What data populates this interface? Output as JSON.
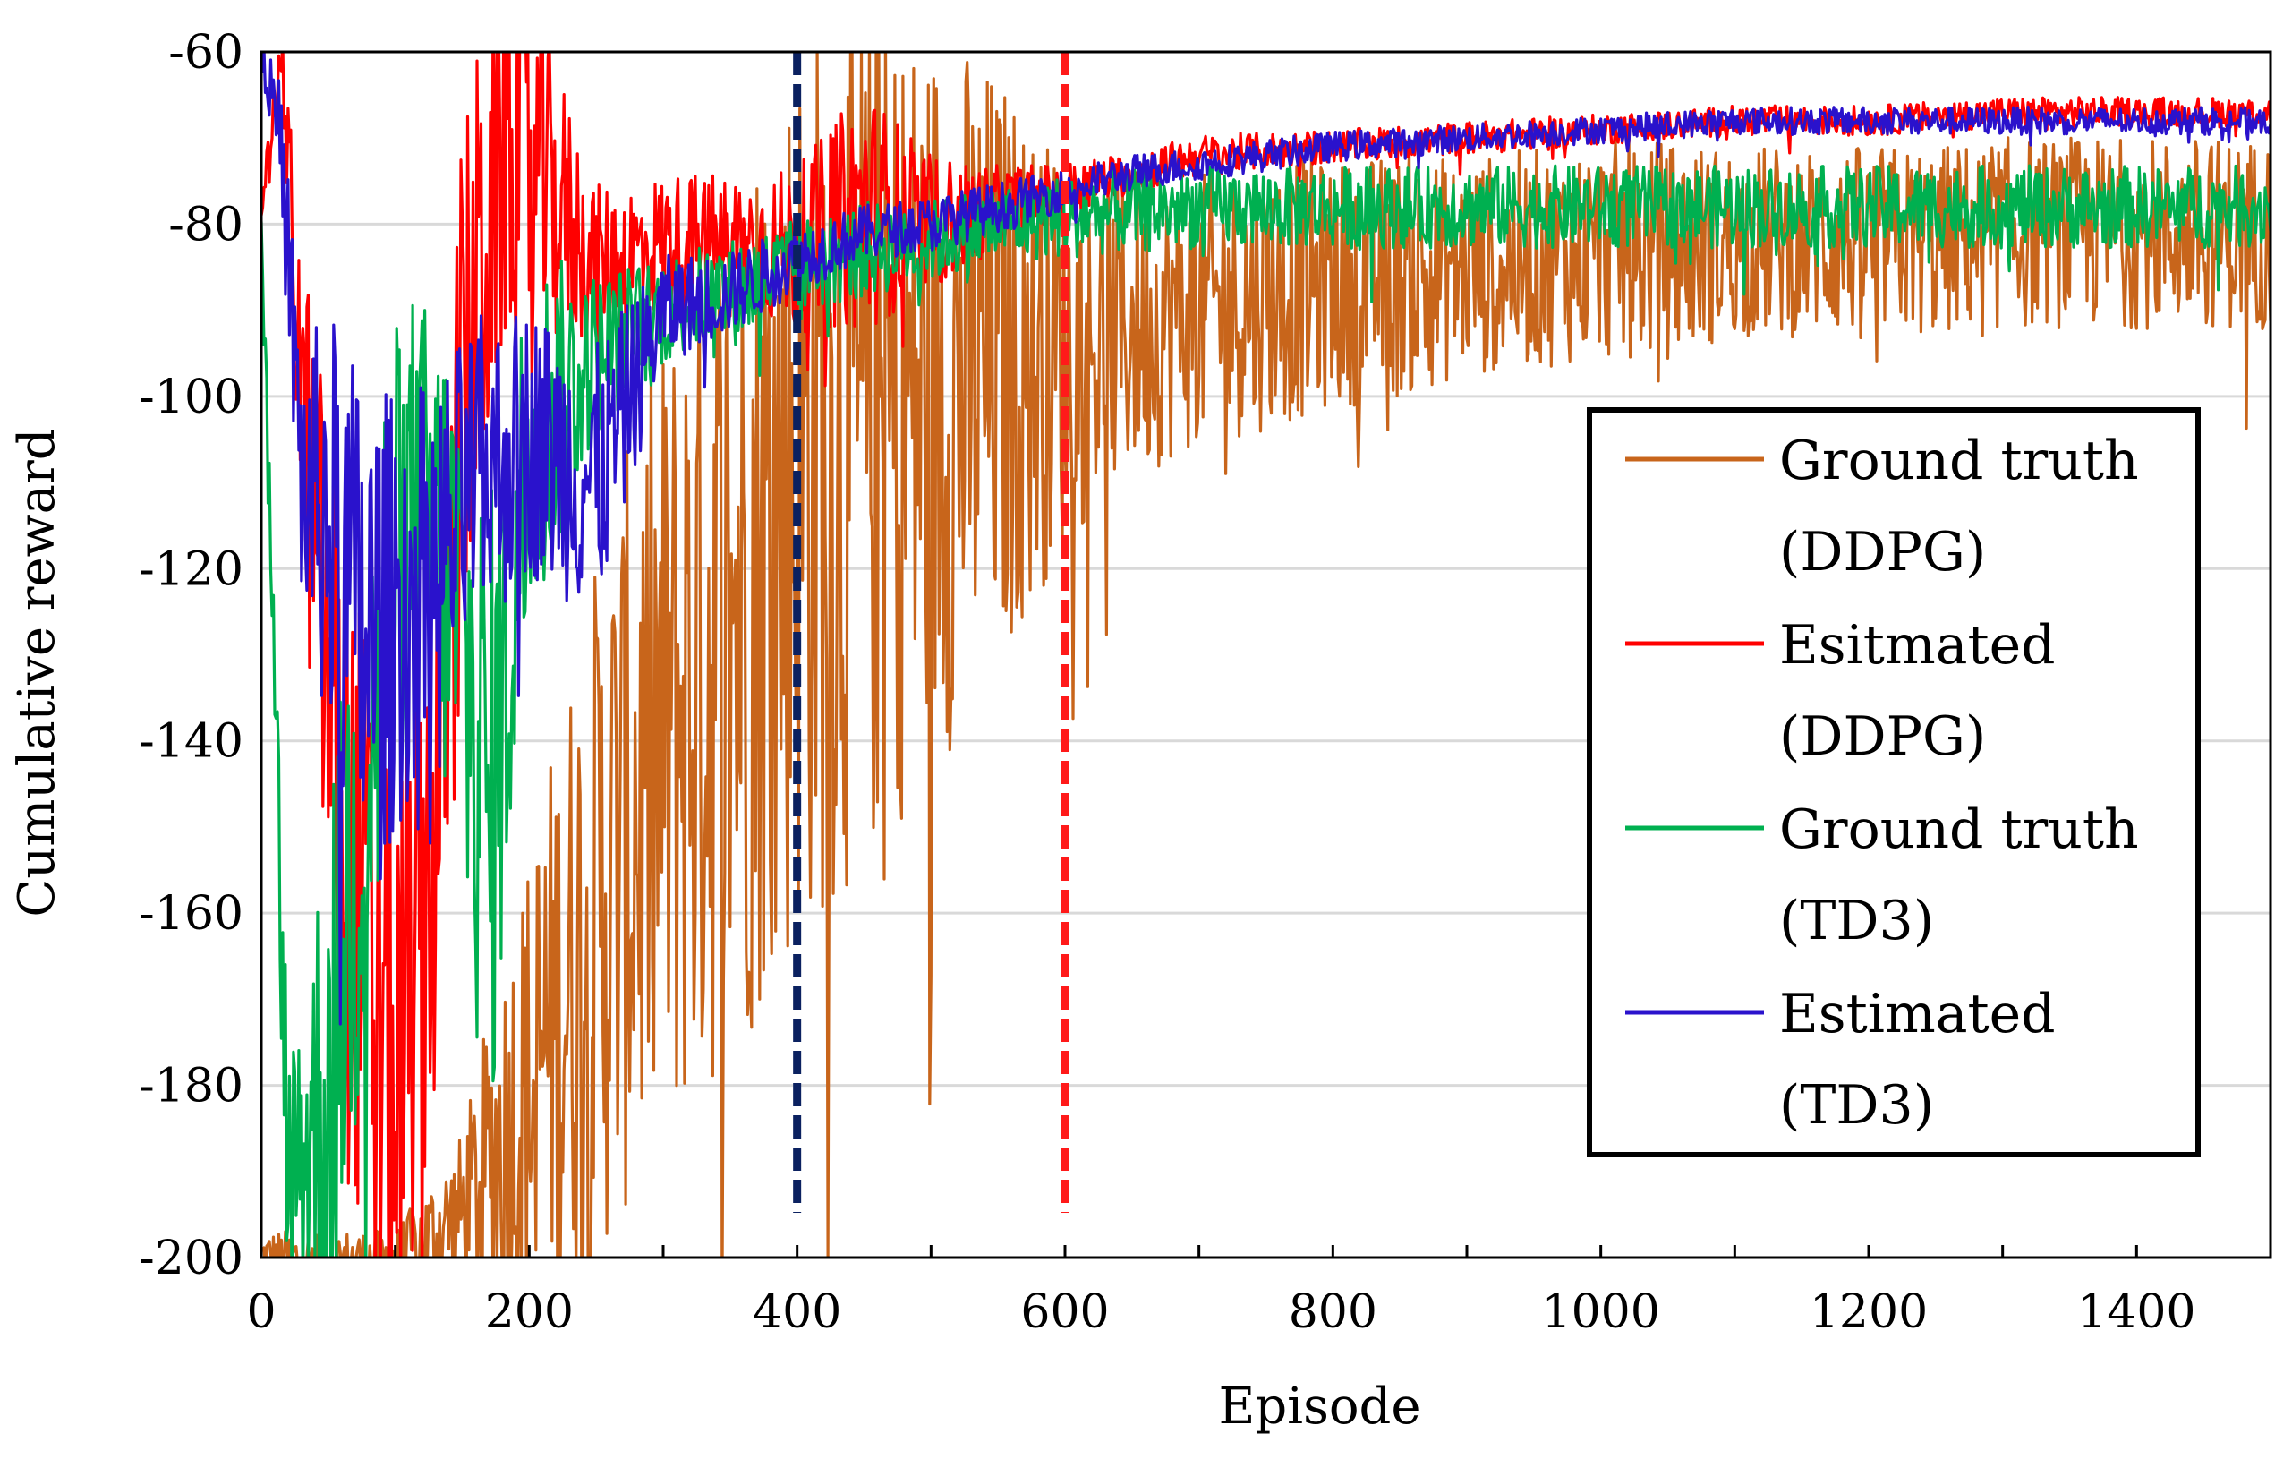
{
  "chart_data": {
    "type": "line",
    "title": "",
    "xlabel": "Episode",
    "ylabel": "Cumulative reward",
    "xlim": [
      0,
      1500
    ],
    "ylim": [
      -200,
      -60
    ],
    "xticks": [
      0,
      200,
      400,
      600,
      800,
      1000,
      1200,
      1400
    ],
    "yticks": [
      -200,
      -180,
      -160,
      -140,
      -120,
      -100,
      -80,
      -60
    ],
    "grid": "horizontal",
    "legend_position": "right",
    "series": [
      {
        "name": "Ground truth (DDPG)",
        "legend_line1": "Ground truth",
        "legend_line2": "(DDPG)",
        "color": "#C8651B",
        "x": [
          0,
          50,
          100,
          150,
          200,
          250,
          300,
          350,
          400,
          450,
          500,
          550,
          600,
          650,
          700,
          750,
          800,
          850,
          900,
          950,
          1000,
          1050,
          1100,
          1150,
          1200,
          1250,
          1300,
          1350,
          1400,
          1450,
          1500
        ],
        "y": [
          -200,
          -200,
          -200,
          -195,
          -180,
          -160,
          -140,
          -125,
          -110,
          -105,
          -100,
          -97,
          -95,
          -92,
          -90,
          -88,
          -87,
          -86,
          -85,
          -84,
          -83,
          -83,
          -82,
          -82,
          -82,
          -82,
          -81,
          -81,
          -81,
          -81,
          -81
        ],
        "noise": [
          2,
          2,
          2,
          6,
          18,
          26,
          30,
          34,
          34,
          32,
          28,
          22,
          14,
          11,
          10,
          10,
          9,
          9,
          8,
          8,
          8,
          8,
          7,
          7,
          7,
          7,
          7,
          7,
          7,
          7,
          7
        ]
      },
      {
        "name": "Esitmated (DDPG)",
        "legend_line1": "Esitmated",
        "legend_line2": "(DDPG)",
        "color": "#FF0000",
        "x": [
          0,
          15,
          30,
          60,
          100,
          130,
          150,
          180,
          210,
          250,
          300,
          350,
          400,
          450,
          500,
          550,
          600,
          650,
          700,
          800,
          900,
          1000,
          1100,
          1200,
          1300,
          1400,
          1500
        ],
        "y": [
          -78,
          -60,
          -100,
          -150,
          -180,
          -150,
          -100,
          -70,
          -75,
          -85,
          -82,
          -82,
          -83,
          -78,
          -80,
          -78,
          -76,
          -74,
          -72,
          -71,
          -70,
          -69,
          -68,
          -68,
          -67,
          -67,
          -67
        ],
        "noise": [
          1,
          2,
          12,
          24,
          22,
          22,
          20,
          16,
          12,
          6,
          5,
          5,
          6,
          9,
          5,
          3,
          2,
          1.5,
          1.5,
          1.2,
          1.2,
          1.1,
          1.1,
          1.1,
          1.1,
          1.1,
          1.1
        ]
      },
      {
        "name": "Ground truth (TD3)",
        "legend_line1": "Ground truth",
        "legend_line2": "(TD3)",
        "color": "#00B050",
        "x": [
          0,
          20,
          50,
          80,
          110,
          140,
          170,
          200,
          250,
          300,
          350,
          400,
          450,
          500,
          550,
          600,
          700,
          800,
          900,
          1000,
          1100,
          1200,
          1300,
          1400,
          1500
        ],
        "y": [
          -80,
          -190,
          -180,
          -140,
          -115,
          -120,
          -150,
          -105,
          -95,
          -90,
          -88,
          -85,
          -83,
          -82,
          -80,
          -79,
          -78,
          -78,
          -78,
          -78,
          -78,
          -78,
          -78,
          -78,
          -78
        ],
        "noise": [
          2,
          10,
          20,
          24,
          18,
          18,
          24,
          14,
          6,
          4,
          4,
          3.5,
          3.5,
          3,
          3,
          3,
          3,
          3,
          3,
          3,
          3,
          3,
          3,
          3,
          3
        ]
      },
      {
        "name": "Estimated (TD3)",
        "legend_line1": "Estimated",
        "legend_line2": "(TD3)",
        "color": "#2A12CC",
        "x": [
          0,
          15,
          30,
          50,
          80,
          100,
          130,
          160,
          200,
          250,
          300,
          350,
          400,
          450,
          500,
          550,
          600,
          650,
          700,
          800,
          900,
          1000,
          1100,
          1200,
          1300,
          1400,
          1500
        ],
        "y": [
          -60,
          -70,
          -110,
          -115,
          -130,
          -125,
          -120,
          -110,
          -105,
          -110,
          -90,
          -88,
          -84,
          -81,
          -80,
          -78,
          -76,
          -74,
          -73,
          -71,
          -70,
          -69,
          -68,
          -68,
          -68,
          -68,
          -68
        ],
        "noise": [
          1,
          4,
          10,
          16,
          20,
          16,
          14,
          12,
          10,
          10,
          4,
          3,
          2.5,
          2,
          2,
          1.8,
          1.5,
          1.3,
          1.2,
          1.1,
          1,
          1,
          1,
          1,
          1,
          1,
          1
        ]
      }
    ],
    "vertical_markers": [
      {
        "x": 400,
        "color": "#0B2160",
        "style": "dashed"
      },
      {
        "x": 600,
        "color": "#FF1A1A",
        "style": "dashed"
      }
    ]
  }
}
